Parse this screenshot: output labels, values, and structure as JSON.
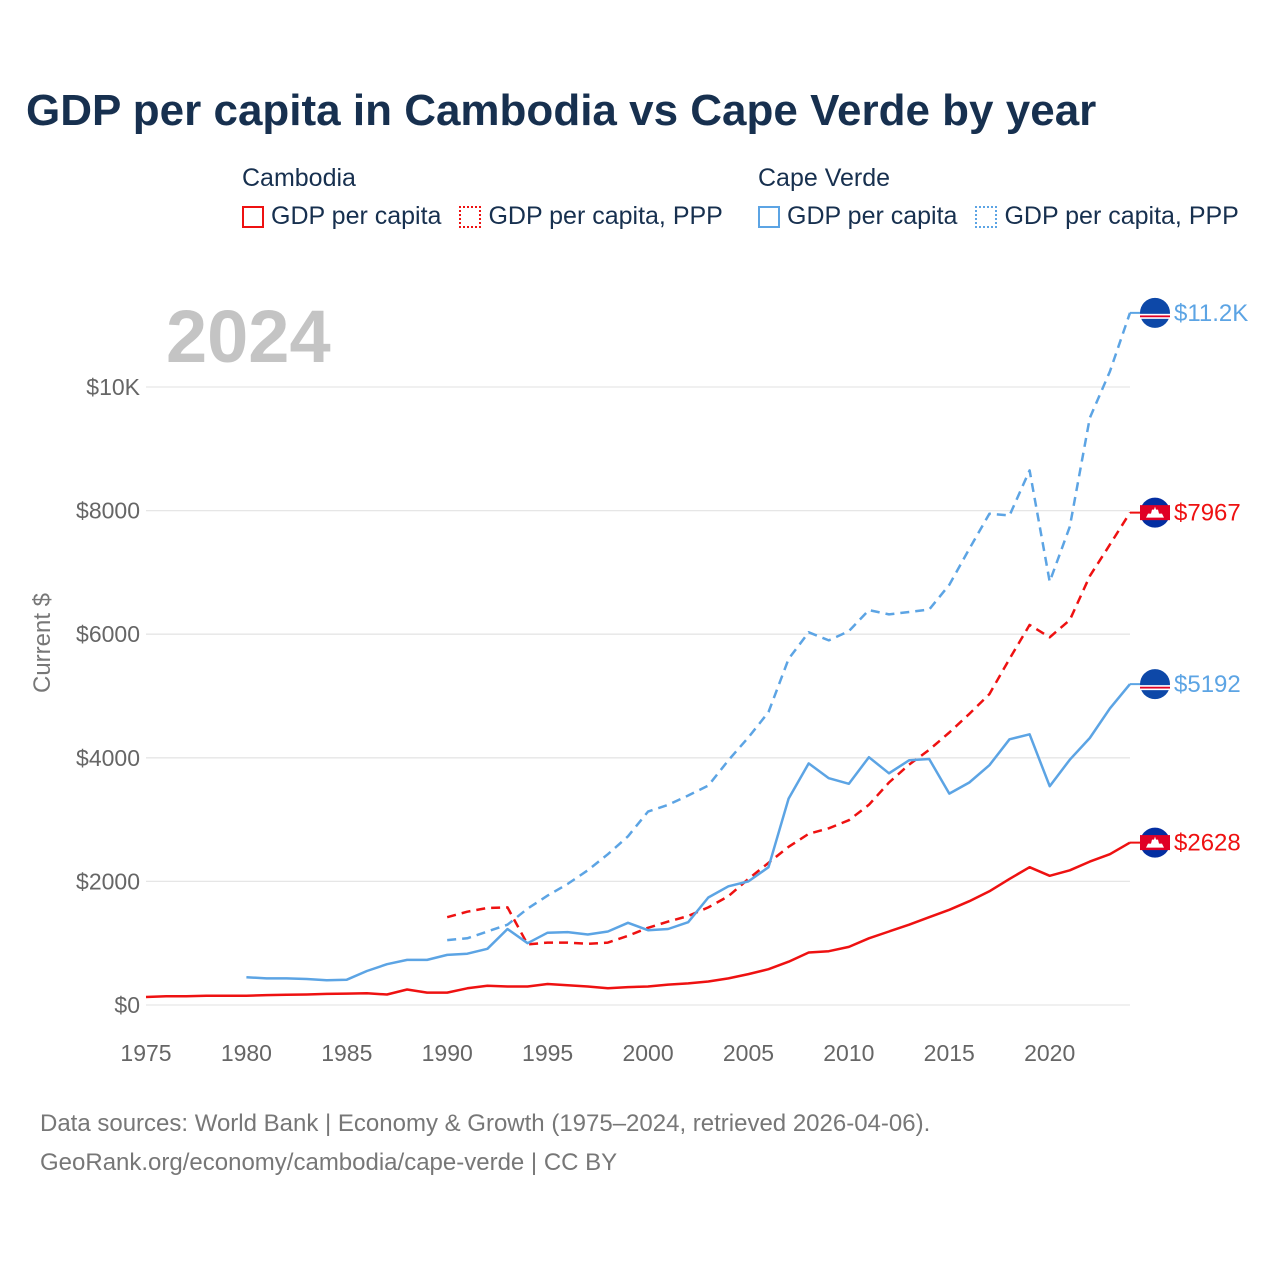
{
  "title": "GDP per capita in Cambodia vs Cape Verde by year",
  "year_badge": "2024",
  "legend": [
    {
      "country": "Cambodia",
      "color": "#ee1111",
      "items": [
        {
          "label": "GDP per capita",
          "style": "solid"
        },
        {
          "label": "GDP per capita, PPP",
          "style": "dotted"
        }
      ]
    },
    {
      "country": "Cape Verde",
      "color": "#5ca4e4",
      "items": [
        {
          "label": "GDP per capita",
          "style": "solid"
        },
        {
          "label": "GDP per capita, PPP",
          "style": "dotted"
        }
      ]
    }
  ],
  "footer": {
    "line1": "Data sources: World Bank | Economy & Growth (1975–2024, retrieved 2026-04-06).",
    "line2": "GeoRank.org/economy/cambodia/cape-verde | CC BY"
  },
  "chart_data": {
    "type": "line",
    "title": "GDP per capita in Cambodia vs Cape Verde by year",
    "xlabel": "",
    "ylabel": "Current $",
    "xlim": [
      1975,
      2024
    ],
    "ylim": [
      0,
      11200
    ],
    "x_ticks": [
      1975,
      1980,
      1985,
      1990,
      1995,
      2000,
      2005,
      2010,
      2015,
      2020
    ],
    "y_ticks": [
      0,
      2000,
      4000,
      6000,
      8000,
      10000
    ],
    "y_tick_labels": [
      "$0",
      "$2000",
      "$4000",
      "$6000",
      "$8000",
      "$10K"
    ],
    "grid": true,
    "series": [
      {
        "name": "Cambodia GDP per capita",
        "color": "#ee1111",
        "dash": "solid",
        "start_year": 1975,
        "end_label": "$2628",
        "flag": "cambodia",
        "values": [
          130,
          140,
          140,
          150,
          150,
          150,
          160,
          165,
          170,
          180,
          185,
          190,
          170,
          250,
          200,
          200,
          270,
          310,
          300,
          300,
          340,
          320,
          300,
          270,
          290,
          300,
          330,
          350,
          380,
          430,
          500,
          580,
          700,
          850,
          870,
          940,
          1080,
          1190,
          1300,
          1420,
          1540,
          1680,
          1840,
          2040,
          2230,
          2090,
          2180,
          2320,
          2440,
          2628
        ]
      },
      {
        "name": "Cambodia GDP per capita, PPP",
        "color": "#ee1111",
        "dash": "dashed",
        "start_year": 1990,
        "end_label": "$7967",
        "flag": "cambodia",
        "values": [
          1420,
          1510,
          1570,
          1580,
          980,
          1010,
          1010,
          990,
          1010,
          1120,
          1250,
          1350,
          1440,
          1580,
          1760,
          2040,
          2300,
          2560,
          2770,
          2860,
          2990,
          3240,
          3600,
          3890,
          4130,
          4410,
          4710,
          5030,
          5600,
          6150,
          5950,
          6230,
          6940,
          7450,
          7967
        ]
      },
      {
        "name": "Cape Verde GDP per capita",
        "color": "#5ca4e4",
        "dash": "solid",
        "start_year": 1980,
        "end_label": "$5192",
        "flag": "cape-verde",
        "values": [
          450,
          430,
          430,
          420,
          400,
          410,
          550,
          660,
          730,
          730,
          810,
          830,
          910,
          1230,
          1000,
          1170,
          1180,
          1140,
          1190,
          1330,
          1210,
          1230,
          1340,
          1740,
          1920,
          2000,
          2230,
          3340,
          3910,
          3670,
          3580,
          4010,
          3750,
          3960,
          3980,
          3420,
          3600,
          3880,
          4300,
          4380,
          3540,
          3970,
          4320,
          4800,
          5192
        ]
      },
      {
        "name": "Cape Verde GDP per capita, PPP",
        "color": "#5ca4e4",
        "dash": "dashed",
        "start_year": 1990,
        "end_label": "$11.2K",
        "flag": "cape-verde",
        "values": [
          1050,
          1080,
          1190,
          1300,
          1560,
          1770,
          1960,
          2180,
          2440,
          2730,
          3130,
          3240,
          3390,
          3550,
          3960,
          4330,
          4740,
          5600,
          6030,
          5900,
          6050,
          6390,
          6320,
          6360,
          6400,
          6800,
          7380,
          7950,
          7920,
          8650,
          6850,
          7740,
          9500,
          10250,
          11200
        ]
      }
    ]
  }
}
